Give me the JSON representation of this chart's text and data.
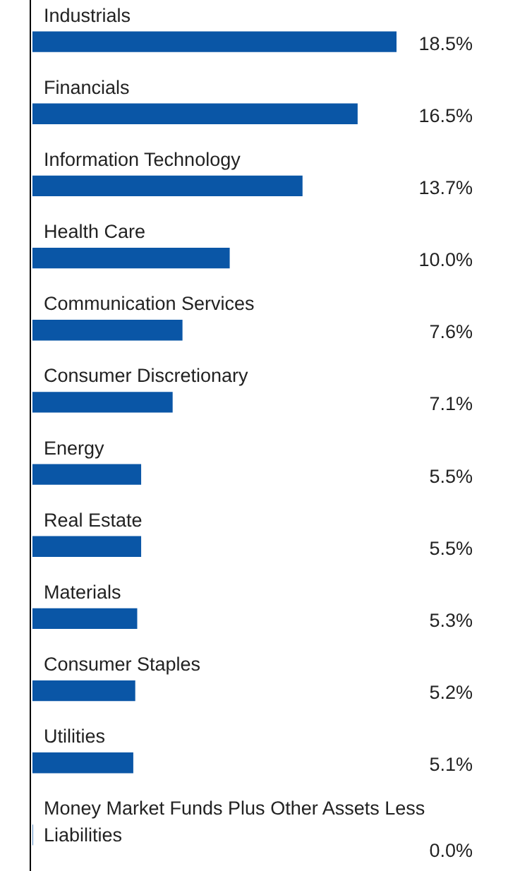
{
  "chart_data": {
    "type": "bar",
    "orientation": "horizontal",
    "value_labels": [
      "18.5%",
      "16.5%",
      "13.7%",
      "10.0%",
      "7.6%",
      "7.1%",
      "5.5%",
      "5.5%",
      "5.3%",
      "5.2%",
      "5.1%",
      "0.0%"
    ],
    "categories": [
      "Industrials",
      "Financials",
      "Information Technology",
      "Health Care",
      "Communication Services",
      "Consumer Discretionary",
      "Energy",
      "Real Estate",
      "Materials",
      "Consumer Staples",
      "Utilities",
      "Money Market Funds Plus Other Assets Less Liabilities"
    ],
    "values": [
      18.5,
      16.5,
      13.7,
      10.0,
      7.6,
      7.1,
      5.5,
      5.5,
      5.3,
      5.2,
      5.1,
      0.0
    ],
    "color": "#0a56a6"
  }
}
